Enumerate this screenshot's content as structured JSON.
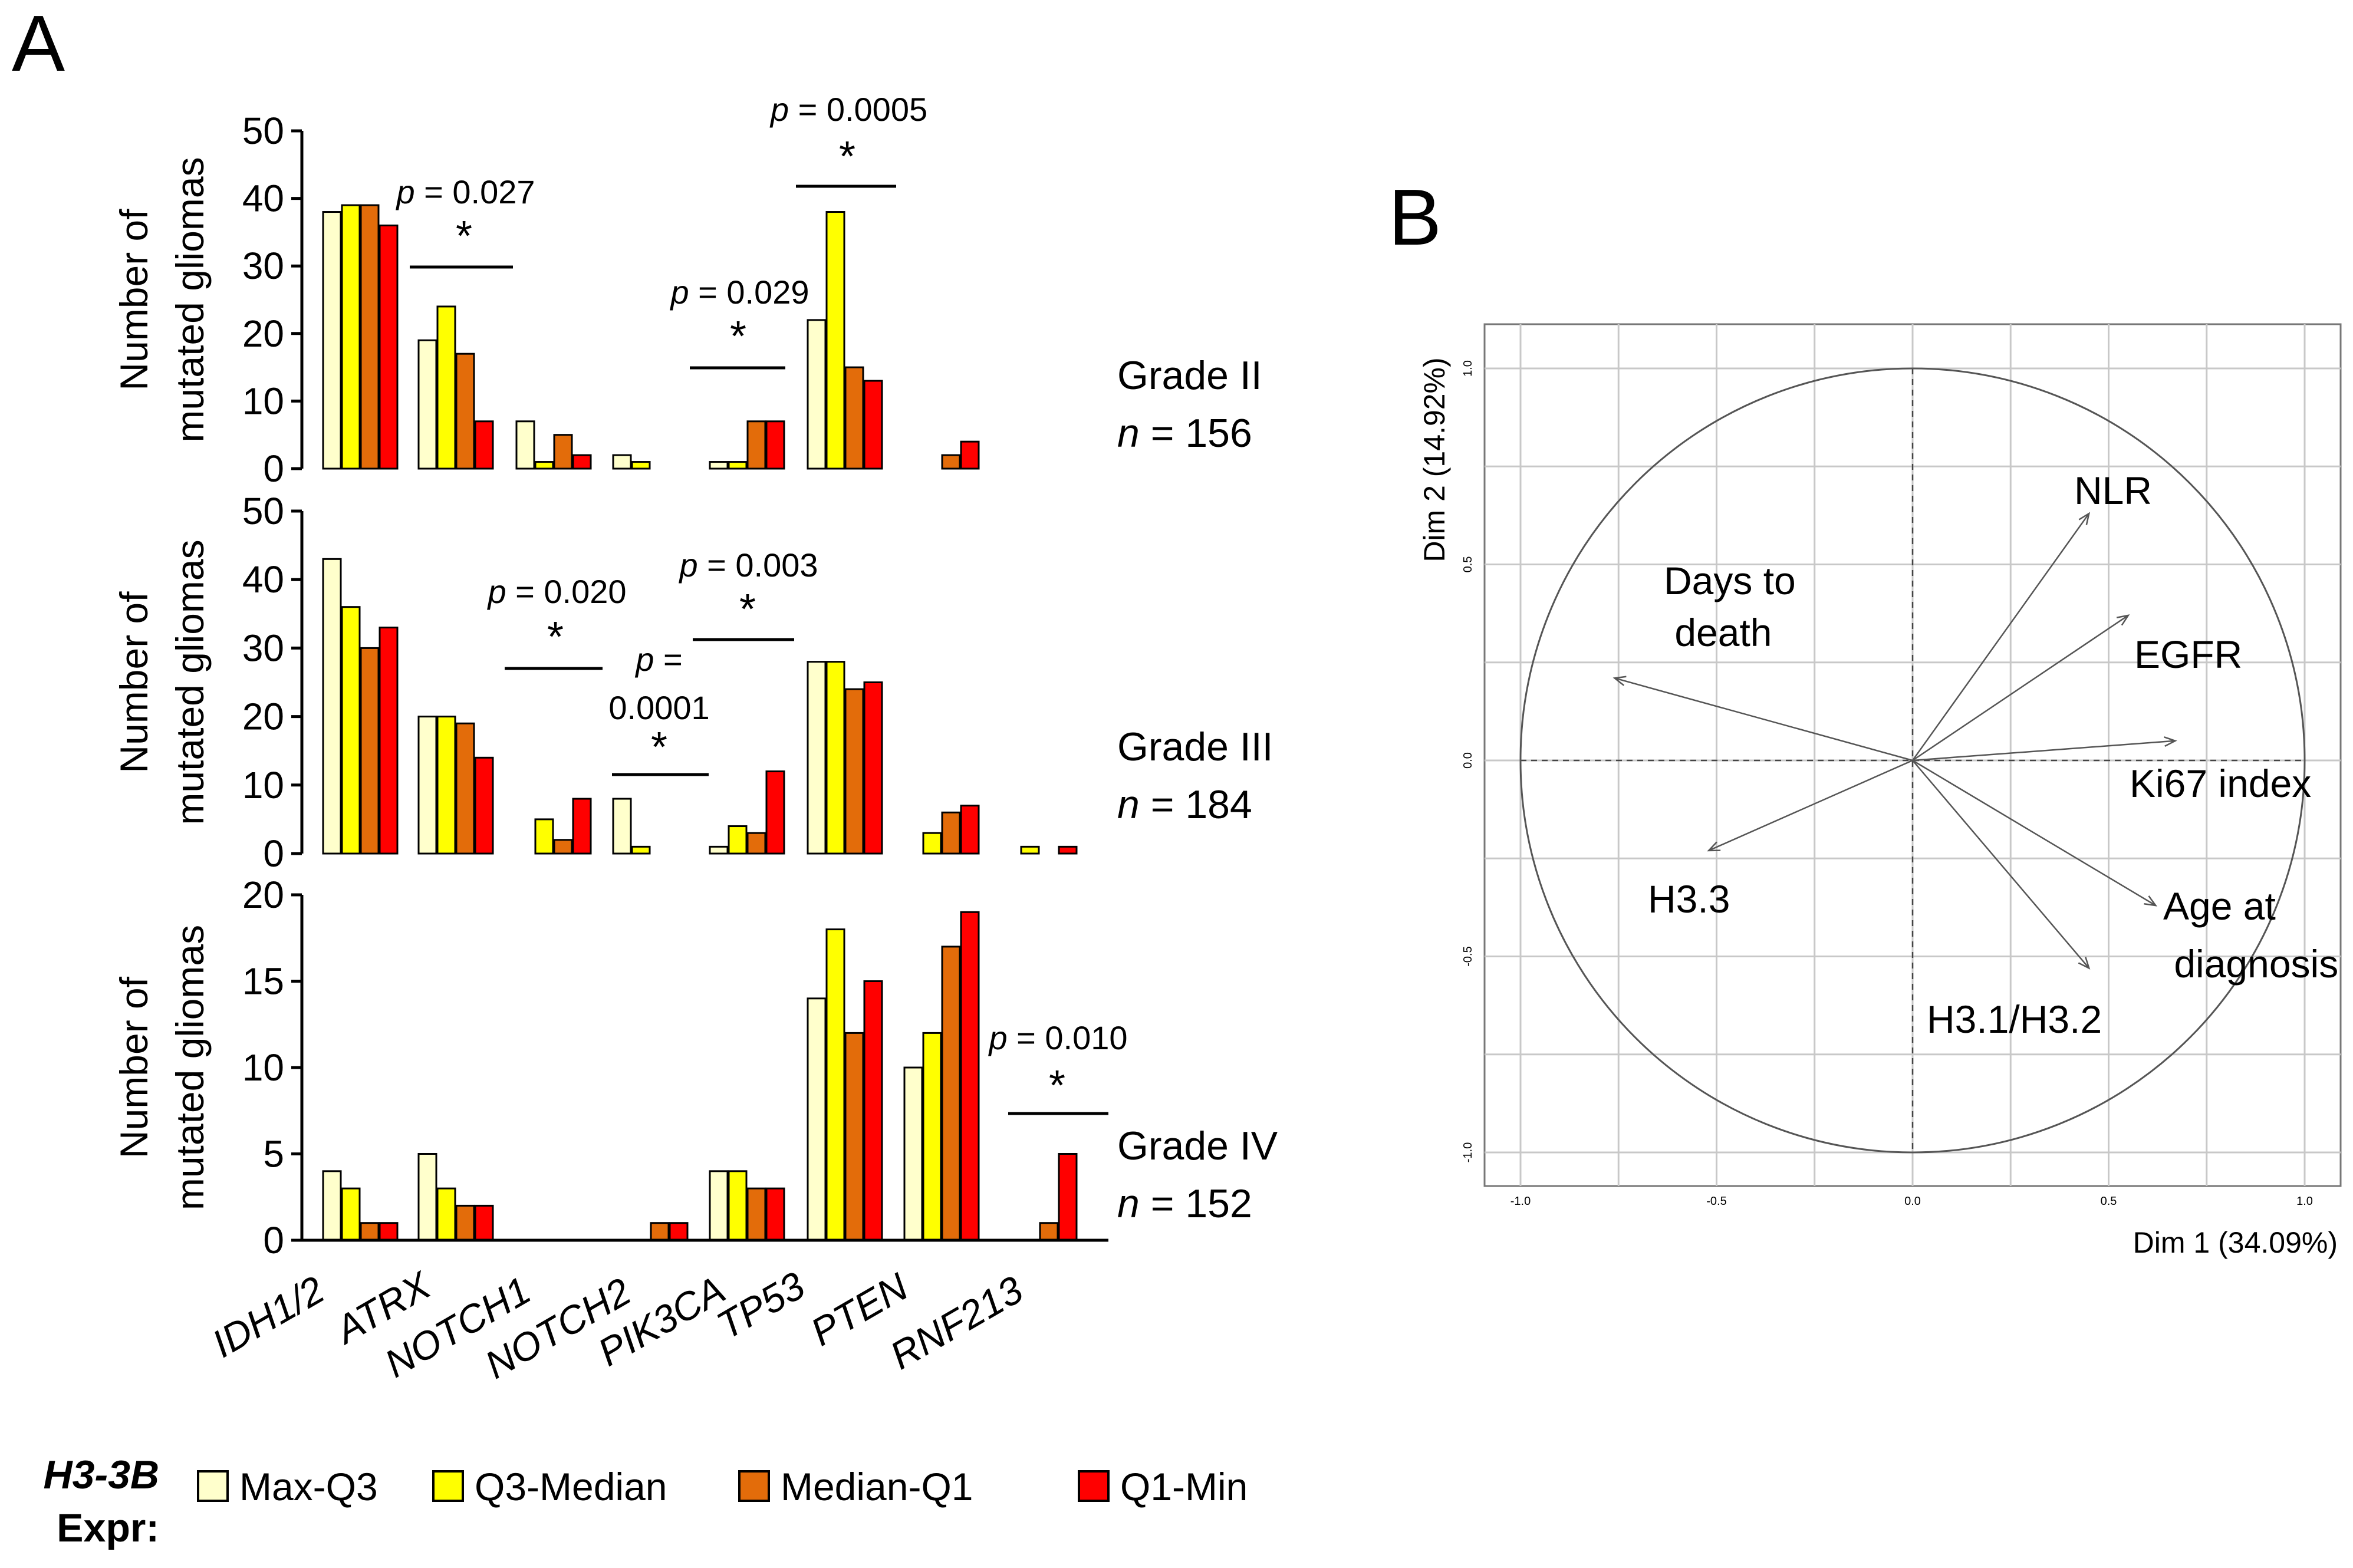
{
  "panel_a_label": "A",
  "panel_b_label": "B",
  "colors": {
    "Max-Q3": "#ffffcc",
    "Q3-Median": "#ffff00",
    "Median-Q1": "#e36c0a",
    "Q1-Min": "#ff0000"
  },
  "legend": {
    "title_line1": "H3-3B",
    "title_line2": "Expr:",
    "items": [
      "Max-Q3",
      "Q3-Median",
      "Median-Q1",
      "Q1-Min"
    ]
  },
  "ylabel_line1": "Number of",
  "ylabel_line2": "mutated gliomas",
  "genes": [
    "IDH1/2",
    "ATRX",
    "NOTCH1",
    "NOTCH2",
    "PIK3CA",
    "TP53",
    "PTEN",
    "RNF213"
  ],
  "chart_data": [
    {
      "type": "bar",
      "title": "Grade II",
      "grade": "Grade II",
      "n_prefix": "n",
      "n_text": " = 156",
      "ylabel": "Number of mutated gliomas",
      "ylim": [
        0,
        50
      ],
      "yticks": [
        "0",
        "10",
        "20",
        "30",
        "40",
        "50"
      ],
      "categories": [
        "IDH1/2",
        "ATRX",
        "NOTCH1",
        "NOTCH2",
        "PIK3CA",
        "TP53",
        "PTEN",
        "RNF213"
      ],
      "series": [
        {
          "name": "Max-Q3",
          "values": [
            38,
            19,
            7,
            2,
            1,
            22,
            0,
            0
          ]
        },
        {
          "name": "Q3-Median",
          "values": [
            39,
            24,
            1,
            1,
            1,
            38,
            0,
            0
          ]
        },
        {
          "name": "Median-Q1",
          "values": [
            39,
            17,
            5,
            0,
            7,
            15,
            2,
            0
          ]
        },
        {
          "name": "Q1-Min",
          "values": [
            36,
            7,
            2,
            0,
            7,
            13,
            4,
            0
          ]
        }
      ],
      "annotations": [
        {
          "gene": "ATRX",
          "p_label": "p",
          "p_value": " = 0.027",
          "star": "*"
        },
        {
          "gene": "PIK3CA",
          "p_label": "p",
          "p_value": " = 0.029",
          "star": "*"
        },
        {
          "gene": "TP53",
          "p_label": "p",
          "p_value": " = 0.0005",
          "star": "*"
        }
      ]
    },
    {
      "type": "bar",
      "title": "Grade III",
      "grade": "Grade III",
      "n_prefix": "n",
      "n_text": " = 184",
      "ylabel": "Number of mutated gliomas",
      "ylim": [
        0,
        50
      ],
      "yticks": [
        "0",
        "10",
        "20",
        "30",
        "40",
        "50"
      ],
      "categories": [
        "IDH1/2",
        "ATRX",
        "NOTCH1",
        "NOTCH2",
        "PIK3CA",
        "TP53",
        "PTEN",
        "RNF213"
      ],
      "series": [
        {
          "name": "Max-Q3",
          "values": [
            43,
            20,
            0,
            8,
            1,
            28,
            0,
            0
          ]
        },
        {
          "name": "Q3-Median",
          "values": [
            36,
            20,
            5,
            1,
            4,
            28,
            3,
            1
          ]
        },
        {
          "name": "Median-Q1",
          "values": [
            30,
            19,
            2,
            0,
            3,
            24,
            6,
            0
          ]
        },
        {
          "name": "Q1-Min",
          "values": [
            33,
            14,
            8,
            0,
            12,
            25,
            7,
            1
          ]
        }
      ],
      "annotations": [
        {
          "gene": "NOTCH1",
          "p_label": "p",
          "p_value": " = 0.020",
          "star": "*"
        },
        {
          "gene": "NOTCH2",
          "p_label": "p",
          "p_value": " =",
          "p_value_2": "0.0001",
          "star": "*"
        },
        {
          "gene": "PIK3CA",
          "p_label": "p",
          "p_value": " = 0.003",
          "star": "*"
        }
      ]
    },
    {
      "type": "bar",
      "title": "Grade IV",
      "grade": "Grade IV",
      "n_prefix": "n",
      "n_text": " = 152",
      "ylabel": "Number of mutated gliomas",
      "ylim": [
        0,
        20
      ],
      "yticks": [
        "0",
        "5",
        "10",
        "15",
        "20"
      ],
      "categories": [
        "IDH1/2",
        "ATRX",
        "NOTCH1",
        "NOTCH2",
        "PIK3CA",
        "TP53",
        "PTEN",
        "RNF213"
      ],
      "series": [
        {
          "name": "Max-Q3",
          "values": [
            4,
            5,
            0,
            0,
            4,
            14,
            10,
            0
          ]
        },
        {
          "name": "Q3-Median",
          "values": [
            3,
            3,
            0,
            0,
            4,
            18,
            12,
            0
          ]
        },
        {
          "name": "Median-Q1",
          "values": [
            1,
            2,
            0,
            1,
            3,
            12,
            17,
            1
          ]
        },
        {
          "name": "Q1-Min",
          "values": [
            1,
            2,
            0,
            1,
            3,
            15,
            19,
            5
          ]
        }
      ],
      "annotations": [
        {
          "gene": "RNF213",
          "p_label": "p",
          "p_value": " = 0.010",
          "star": "*"
        }
      ]
    },
    {
      "type": "scatter",
      "subtype": "pca-variables-factor-map",
      "title": "",
      "xlabel": "Dim 1 (34.09%)",
      "ylabel": "Dim 2 (14.92%)",
      "xlim": [
        -1.0,
        1.0
      ],
      "ylim": [
        -1.0,
        1.0
      ],
      "xticks": [
        "-1.0",
        "-0.5",
        "0.0",
        "0.5",
        "1.0"
      ],
      "yticks": [
        "-1.0",
        "-0.5",
        "0.0",
        "0.5",
        "1.0"
      ],
      "vectors": [
        {
          "name": "NLR",
          "x": 0.45,
          "y": 0.63
        },
        {
          "name": "EGFR",
          "x": 0.55,
          "y": 0.37
        },
        {
          "name": "Ki67 index",
          "x": 0.67,
          "y": 0.05
        },
        {
          "name": "Age at diagnosis",
          "x": 0.62,
          "y": -0.37
        },
        {
          "name": "H3.1/H3.2",
          "x": 0.45,
          "y": -0.53
        },
        {
          "name": "H3.3",
          "x": -0.52,
          "y": -0.23
        },
        {
          "name": "Days to death",
          "x": -0.76,
          "y": 0.21
        }
      ]
    }
  ]
}
